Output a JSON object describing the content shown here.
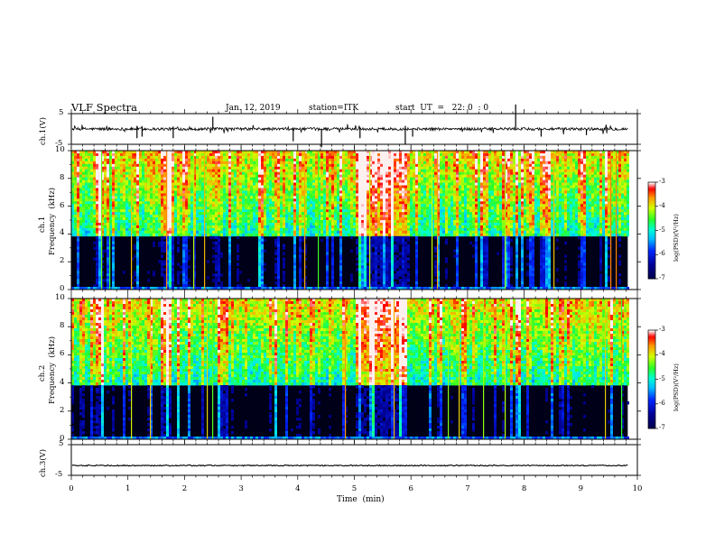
{
  "header": {
    "title": "VLF Spectra",
    "date": "Jan. 12, 2019",
    "station": "station=ITK",
    "start": "start  UT  =   22: 0  : 0"
  },
  "chart_data": [
    {
      "type": "line",
      "panel": "ch1-waveform",
      "ylabel": "ch.1(V)",
      "xlim": [
        0,
        10
      ],
      "ylim": [
        -5,
        5
      ],
      "yticks": [
        "5",
        "-5"
      ],
      "baseline": 0,
      "note_series": "noisy waveform near 0 V with impulsive spikes"
    },
    {
      "type": "heatmap",
      "panel": "ch1-spectrogram",
      "ylabel_line1": "ch.1",
      "ylabel_line2": "Frequency  (kHz)",
      "xlim": [
        0,
        10
      ],
      "ylim": [
        0,
        10
      ],
      "yticks": [
        "0",
        "2",
        "4",
        "6",
        "8",
        "10"
      ],
      "colorbar": {
        "label": "log(PSD)(V²/Hz)",
        "range": [
          -7,
          -3
        ],
        "ticks": [
          "-3",
          "-4",
          "-5",
          "-6",
          "-7"
        ]
      }
    },
    {
      "type": "heatmap",
      "panel": "ch2-spectrogram",
      "ylabel_line1": "ch.2",
      "ylabel_line2": "Frequency  (kHz)",
      "xlim": [
        0,
        10
      ],
      "ylim": [
        0,
        10
      ],
      "yticks": [
        "0",
        "2",
        "4",
        "6",
        "8",
        "10"
      ],
      "colorbar": {
        "label": "log(PSD)(V²/Hz)",
        "range": [
          -7,
          -3
        ],
        "ticks": [
          "-3",
          "-4",
          "-5",
          "-6",
          "-7"
        ]
      }
    },
    {
      "type": "line",
      "panel": "ch3-waveform",
      "ylabel": "ch.3(V)",
      "xlim": [
        0,
        10
      ],
      "ylim": [
        -5,
        5
      ],
      "yticks": [
        "5",
        "-5"
      ],
      "baseline": -1.8
    }
  ],
  "xaxis": {
    "label": "Time  (min)",
    "ticks": [
      "0",
      "1",
      "2",
      "3",
      "4",
      "5",
      "6",
      "7",
      "8",
      "9",
      "10"
    ],
    "data_end": 9.83
  },
  "colors": {
    "colormap": [
      "#00005a",
      "#0000ff",
      "#00ffff",
      "#00ff00",
      "#ffff00",
      "#ff0000",
      "#ffffff"
    ],
    "line": "#000000"
  }
}
